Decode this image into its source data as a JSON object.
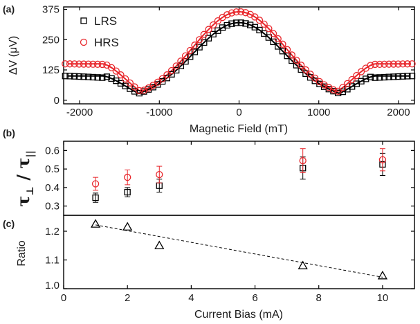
{
  "chart_data": [
    {
      "panel": "(a)",
      "type": "scatter",
      "xlabel": "Magnetic Field (mT)",
      "ylabel": "ΔV (μV)",
      "xlim": [
        -2200,
        2200
      ],
      "ylim": [
        -15,
        385
      ],
      "xticks": [
        -2000,
        -1000,
        0,
        1000,
        2000
      ],
      "xtick_labels": [
        "-2000",
        "-1000",
        "0",
        "1000",
        "2000"
      ],
      "yticks": [
        0,
        125,
        250,
        375
      ],
      "ytick_labels": [
        "0",
        "125",
        "250",
        "375"
      ],
      "legend": {
        "placement": "top-left"
      },
      "series": [
        {
          "name": "LRS",
          "marker": "square",
          "color": "#000000",
          "fit_color": "#000000",
          "baseline": 100,
          "flat_baseline": 93,
          "peak": 320,
          "min_field": 1000,
          "shoulder_field": 1700
        },
        {
          "name": "HRS",
          "marker": "circle",
          "color": "#e8262b",
          "fit_color": "#e8262b",
          "baseline": 150,
          "flat_baseline": 148,
          "peak": 365,
          "min_field": 1000,
          "shoulder_field": 1700
        }
      ]
    },
    {
      "panel": "(b)",
      "type": "scatter",
      "xlabel": "",
      "ylabel_main": "τ",
      "ylabel_sub1": "⊥",
      "ylabel_sep": " / ",
      "ylabel_sub2": "||",
      "xlim": [
        0,
        11
      ],
      "ylim": [
        0.25,
        0.65
      ],
      "yticks": [
        0.3,
        0.4,
        0.5,
        0.6
      ],
      "ytick_labels": [
        "0.3",
        "0.4",
        "0.5",
        "0.6"
      ],
      "series": [
        {
          "name": "LRS",
          "marker": "square",
          "color": "#000000",
          "x": [
            1,
            2,
            3,
            7.5,
            10
          ],
          "y": [
            0.345,
            0.375,
            0.41,
            0.505,
            0.525
          ],
          "err": [
            0.025,
            0.025,
            0.035,
            0.06,
            0.06
          ]
        },
        {
          "name": "HRS",
          "marker": "circle",
          "color": "#e8262b",
          "x": [
            1,
            2,
            3,
            7.5,
            10
          ],
          "y": [
            0.42,
            0.455,
            0.47,
            0.545,
            0.55
          ],
          "err": [
            0.035,
            0.04,
            0.045,
            0.065,
            0.06
          ]
        }
      ]
    },
    {
      "panel": "(c)",
      "type": "scatter",
      "xlabel": "Current Bias (mA)",
      "ylabel": "Ratio",
      "xlim": [
        0,
        11
      ],
      "ylim": [
        1.0,
        1.25
      ],
      "xticks": [
        0,
        2,
        4,
        6,
        8,
        10
      ],
      "xtick_labels": [
        "0",
        "2",
        "4",
        "6",
        "8",
        "10"
      ],
      "yticks": [
        1.0,
        1.1,
        1.2
      ],
      "ytick_labels": [
        "1.0",
        "1.1",
        "1.2"
      ],
      "series": [
        {
          "marker": "triangle",
          "color": "#000000",
          "x": [
            1,
            2,
            3,
            7.5,
            10
          ],
          "y": [
            1.225,
            1.215,
            1.15,
            1.08,
            1.045
          ]
        }
      ],
      "trendline": {
        "style": "dashed",
        "color": "#000000",
        "x": [
          1,
          10
        ],
        "y": [
          1.222,
          1.04
        ]
      }
    }
  ]
}
